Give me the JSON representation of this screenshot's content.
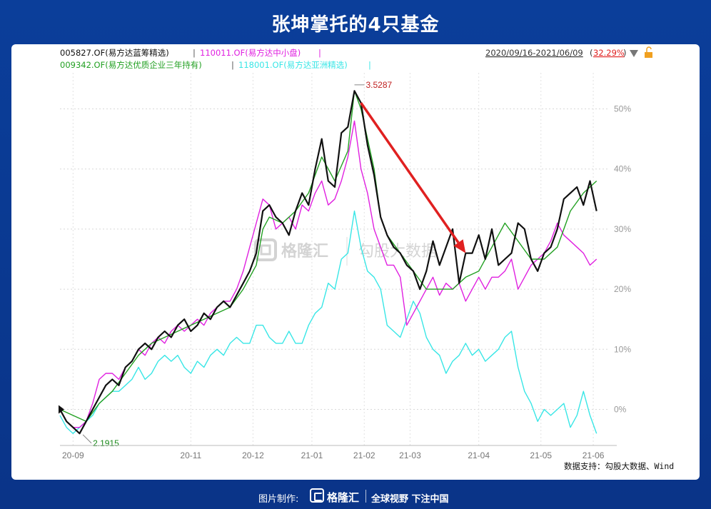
{
  "page": {
    "title": "张坤掌托的4只基金",
    "footer_label": "图片制作:",
    "footer_brand": "格隆汇",
    "footer_slogan": "全球视野 下注中国",
    "watermark_left": "格隆汇",
    "watermark_right": "勾股大数据",
    "source": "数据支持：勾股大数据、Wind"
  },
  "colors": {
    "background": "#0a3a93",
    "annotation_arrow": "#e02020"
  },
  "chart_data": {
    "type": "line",
    "date_range": "2020/09/16-2021/06/09",
    "range_change": "32.29%",
    "yticks": [
      "50%",
      "40%",
      "30%",
      "20%",
      "10%",
      "0%"
    ],
    "ytick_values": [
      50,
      40,
      30,
      20,
      10,
      0
    ],
    "ylim": [
      -6,
      56
    ],
    "xticks": [
      "20-09",
      "20-11",
      "20-12",
      "21-01",
      "21-02",
      "21-03",
      "21-04",
      "21-05",
      "21-06"
    ],
    "xtick_positions": [
      2,
      20,
      29.5,
      38.5,
      46.5,
      53.5,
      64,
      73.5,
      81.5
    ],
    "xlim": [
      0,
      84
    ],
    "max_label": "3.5287",
    "max_point": [
      45,
      54
    ],
    "min_label": "2.1915",
    "min_point": [
      3.5,
      -4.2
    ],
    "arrow": {
      "from": [
        46,
        51
      ],
      "to": [
        62,
        26
      ]
    },
    "series": [
      {
        "name": "005827.OF(易方达蓝筹精选)",
        "color": "#111111",
        "width": 2.2,
        "x": [
          0,
          1,
          2,
          3,
          4,
          5,
          6,
          7,
          8,
          9,
          10,
          11,
          12,
          13,
          14,
          15,
          16,
          17,
          18,
          19,
          20,
          21,
          22,
          23,
          24,
          25,
          26,
          27,
          28,
          29,
          30,
          31,
          32,
          33,
          34,
          35,
          36,
          37,
          38,
          39,
          40,
          41,
          42,
          43,
          44,
          45,
          46,
          47,
          48,
          49,
          50,
          51,
          52,
          53,
          54,
          55,
          56,
          57,
          58,
          59,
          60,
          61,
          62,
          63,
          64,
          65,
          66,
          67,
          68,
          69,
          70,
          71,
          72,
          73,
          74,
          75,
          76,
          77,
          78,
          79,
          80,
          81,
          82
        ],
        "y": [
          0,
          -2,
          -3,
          -4,
          -2,
          0,
          2,
          4,
          5,
          4,
          7,
          8,
          10,
          11,
          10,
          12,
          13,
          12,
          14,
          15,
          13,
          14,
          16,
          15,
          17,
          18,
          17,
          19,
          21,
          23,
          26,
          33,
          34,
          32,
          31,
          29,
          33,
          36,
          34,
          40,
          45,
          38,
          37,
          46,
          47,
          53,
          51,
          44,
          39,
          32,
          29,
          27,
          26,
          24,
          23,
          20,
          23,
          28,
          24,
          27,
          30,
          21,
          26,
          26,
          29,
          25,
          30,
          24,
          25,
          26,
          31,
          30,
          25,
          23,
          26,
          27,
          30,
          35,
          36,
          37,
          34,
          38,
          33
        ]
      },
      {
        "name": "110011.OF(易方达中小盘)",
        "color": "#e020e0",
        "width": 1.4,
        "x": [
          0,
          1,
          2,
          3,
          4,
          5,
          6,
          7,
          8,
          9,
          10,
          11,
          12,
          13,
          14,
          15,
          16,
          17,
          18,
          19,
          20,
          21,
          22,
          23,
          24,
          25,
          26,
          27,
          28,
          29,
          30,
          31,
          32,
          33,
          34,
          35,
          36,
          37,
          38,
          39,
          40,
          41,
          42,
          43,
          44,
          45,
          46,
          47,
          48,
          49,
          50,
          51,
          52,
          53,
          54,
          55,
          56,
          57,
          58,
          59,
          60,
          61,
          62,
          63,
          64,
          65,
          66,
          67,
          68,
          69,
          70,
          71,
          72,
          73,
          74,
          75,
          76,
          77,
          78,
          79,
          80,
          81,
          82
        ],
        "y": [
          0,
          -2,
          -3,
          -3,
          -2,
          1,
          5,
          6,
          6,
          5,
          7,
          8,
          10,
          9,
          11,
          12,
          11,
          13,
          14,
          13,
          14,
          15,
          14,
          16,
          17,
          18,
          18,
          20,
          23,
          27,
          31,
          35,
          34,
          30,
          31,
          32,
          30,
          34,
          33,
          36,
          38,
          34,
          35,
          38,
          42,
          48,
          40,
          36,
          30,
          27,
          24,
          24,
          22,
          14,
          16,
          18,
          20,
          22,
          19,
          21,
          20,
          21,
          18,
          20,
          22,
          20,
          22,
          22,
          23,
          25,
          20,
          22,
          24,
          25,
          26,
          28,
          31,
          29,
          28,
          27,
          26,
          24,
          25
        ]
      },
      {
        "name": "009342.OF(易方达优质企业三年持有)",
        "color": "#22a022",
        "width": 1.4,
        "x": [
          0,
          2,
          4,
          6,
          8,
          10,
          12,
          14,
          16,
          18,
          20,
          22,
          24,
          26,
          28,
          30,
          31,
          32,
          34,
          36,
          38,
          40,
          42,
          44,
          45,
          46,
          48,
          49,
          50,
          52,
          54,
          56,
          58,
          60,
          62,
          64,
          66,
          68,
          70,
          72,
          74,
          76,
          78,
          80,
          82
        ],
        "y": [
          0,
          -1,
          -2,
          1,
          3,
          6,
          9,
          11,
          12,
          13,
          14,
          15,
          16,
          17,
          20,
          24,
          30,
          32,
          31,
          33,
          36,
          42,
          38,
          43,
          53,
          50,
          40,
          32,
          29,
          26,
          23,
          20,
          20,
          20,
          22,
          23,
          27,
          31,
          28,
          25,
          25,
          27,
          33,
          36,
          38
        ]
      },
      {
        "name": "118001.OF(易方达亚洲精选)",
        "color": "#38e6e6",
        "width": 1.4,
        "x": [
          0,
          1,
          2,
          3,
          4,
          5,
          6,
          7,
          8,
          9,
          10,
          11,
          12,
          13,
          14,
          15,
          16,
          17,
          18,
          19,
          20,
          21,
          22,
          23,
          24,
          25,
          26,
          27,
          28,
          29,
          30,
          31,
          32,
          33,
          34,
          35,
          36,
          37,
          38,
          39,
          40,
          41,
          42,
          43,
          44,
          45,
          46,
          47,
          48,
          49,
          50,
          51,
          52,
          53,
          54,
          55,
          56,
          57,
          58,
          59,
          60,
          61,
          62,
          63,
          64,
          65,
          66,
          67,
          68,
          69,
          70,
          71,
          72,
          73,
          74,
          75,
          76,
          77,
          78,
          79,
          80,
          81,
          82
        ],
        "y": [
          -1,
          -3,
          -4,
          -3,
          -2,
          -1,
          1,
          2,
          3,
          3,
          4,
          5,
          7,
          5,
          6,
          8,
          9,
          8,
          9,
          7,
          6,
          8,
          7,
          9,
          10,
          9,
          11,
          12,
          11,
          11,
          14,
          14,
          12,
          11,
          11,
          13,
          11,
          11,
          14,
          16,
          17,
          21,
          20,
          25,
          26,
          33,
          27,
          23,
          22,
          20,
          14,
          13,
          12,
          15,
          18,
          16,
          12,
          10,
          9,
          6,
          8,
          9,
          11,
          9,
          10,
          8,
          9,
          10,
          12,
          13,
          7,
          3,
          1,
          -2,
          0,
          -1,
          0,
          1,
          -3,
          -1,
          3,
          -1,
          -4
        ]
      }
    ]
  }
}
